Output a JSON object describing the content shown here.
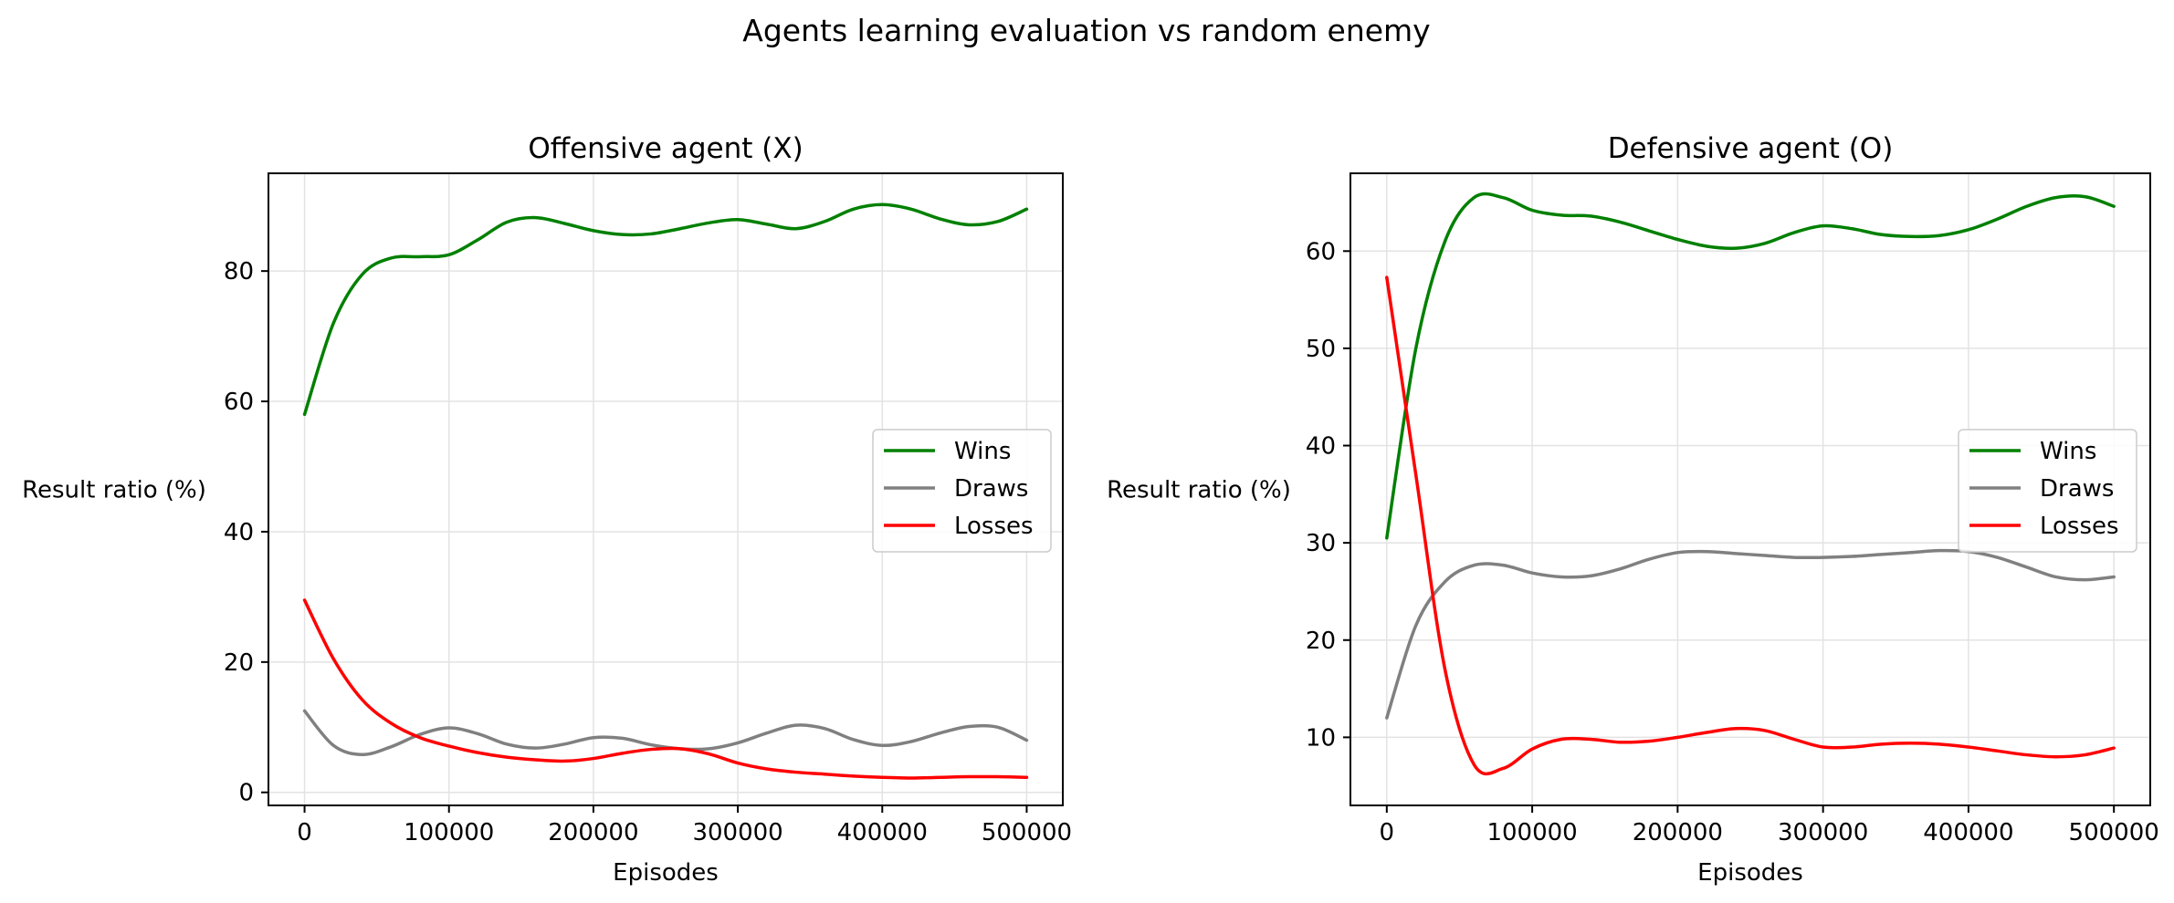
{
  "figure": {
    "suptitle": "Agents learning evaluation vs random enemy"
  },
  "colors": {
    "wins": "#008000",
    "draws": "#808080",
    "losses": "#ff0000"
  },
  "chart_data": [
    {
      "type": "line",
      "title": "Offensive agent (X)",
      "xlabel": "Episodes",
      "ylabel": "Result ratio (%)",
      "xlim": [
        -25000,
        525000
      ],
      "ylim": [
        -2,
        95
      ],
      "xticks": [
        0,
        100000,
        200000,
        300000,
        400000,
        500000
      ],
      "yticks": [
        0,
        20,
        40,
        60,
        80
      ],
      "grid": true,
      "legend_position": "center-right",
      "x": [
        0,
        20000,
        40000,
        60000,
        80000,
        100000,
        120000,
        140000,
        160000,
        180000,
        200000,
        220000,
        240000,
        260000,
        280000,
        300000,
        320000,
        340000,
        360000,
        380000,
        400000,
        420000,
        440000,
        460000,
        480000,
        500000
      ],
      "series": [
        {
          "name": "Wins",
          "color": "#008000",
          "values": [
            58,
            72,
            79.5,
            82,
            82.2,
            82.5,
            84.8,
            87.5,
            88.2,
            87.3,
            86.2,
            85.6,
            85.7,
            86.5,
            87.4,
            87.9,
            87.2,
            86.5,
            87.6,
            89.5,
            90.2,
            89.5,
            88,
            87.1,
            87.6,
            89.5
          ]
        },
        {
          "name": "Draws",
          "color": "#808080",
          "values": [
            12.5,
            7.2,
            5.8,
            7,
            8.9,
            9.9,
            9,
            7.4,
            6.8,
            7.4,
            8.4,
            8.3,
            7.3,
            6.7,
            6.7,
            7.6,
            9.1,
            10.3,
            9.8,
            8.1,
            7.2,
            7.8,
            9.1,
            10.1,
            10,
            8
          ]
        },
        {
          "name": "Losses",
          "color": "#ff0000",
          "values": [
            29.5,
            20.5,
            14.2,
            10.6,
            8.4,
            7.1,
            6.1,
            5.4,
            5,
            4.8,
            5.2,
            6,
            6.6,
            6.7,
            5.9,
            4.5,
            3.6,
            3.1,
            2.8,
            2.5,
            2.3,
            2.2,
            2.3,
            2.4,
            2.4,
            2.3
          ]
        }
      ]
    },
    {
      "type": "line",
      "title": "Defensive agent (O)",
      "xlabel": "Episodes",
      "ylabel": "Result ratio (%)",
      "xlim": [
        -25000,
        525000
      ],
      "ylim": [
        3,
        68
      ],
      "xticks": [
        0,
        100000,
        200000,
        300000,
        400000,
        500000
      ],
      "yticks": [
        10,
        20,
        30,
        40,
        50,
        60
      ],
      "grid": true,
      "legend_position": "center-right",
      "x": [
        0,
        20000,
        40000,
        60000,
        80000,
        100000,
        120000,
        140000,
        160000,
        180000,
        200000,
        220000,
        240000,
        260000,
        280000,
        300000,
        320000,
        340000,
        360000,
        380000,
        400000,
        420000,
        440000,
        460000,
        480000,
        500000
      ],
      "series": [
        {
          "name": "Wins",
          "color": "#008000",
          "values": [
            30.5,
            50,
            61,
            65.5,
            65.5,
            64.2,
            63.7,
            63.6,
            63,
            62.1,
            61.2,
            60.5,
            60.3,
            60.8,
            61.9,
            62.6,
            62.3,
            61.7,
            61.5,
            61.6,
            62.2,
            63.3,
            64.6,
            65.5,
            65.6,
            64.6
          ]
        },
        {
          "name": "Draws",
          "color": "#808080",
          "values": [
            12,
            21.5,
            26,
            27.7,
            27.7,
            26.9,
            26.5,
            26.6,
            27.3,
            28.3,
            29,
            29.1,
            28.9,
            28.7,
            28.5,
            28.5,
            28.6,
            28.8,
            29,
            29.2,
            29.1,
            28.5,
            27.5,
            26.5,
            26.2,
            26.5
          ]
        },
        {
          "name": "Losses",
          "color": "#ff0000",
          "values": [
            57.3,
            37,
            17,
            7.2,
            6.8,
            8.8,
            9.8,
            9.8,
            9.5,
            9.6,
            10,
            10.5,
            10.9,
            10.7,
            9.8,
            9,
            9,
            9.3,
            9.4,
            9.3,
            9,
            8.6,
            8.2,
            8,
            8.2,
            8.9
          ]
        }
      ]
    }
  ]
}
